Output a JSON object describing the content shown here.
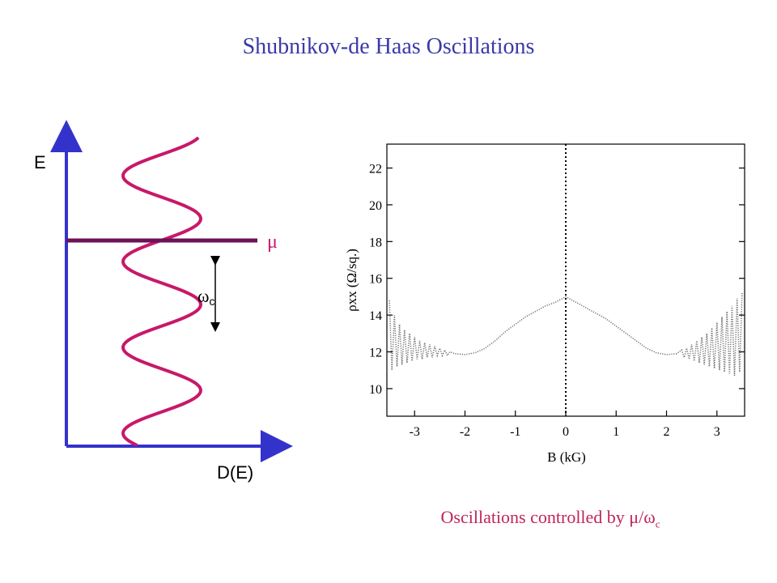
{
  "title": "Shubnikov-de Haas Oscillations",
  "caption": {
    "text": "Oscillations controlled by μ/ω",
    "subscript": "c"
  },
  "diagram": {
    "e_label": "E",
    "d_label": "D(E)",
    "mu_label": "μ",
    "omega_label": "ω",
    "omega_sub": "c",
    "colors": {
      "axis": "#3333cc",
      "curve": "#c8186a",
      "mu_line": "#6b1258"
    }
  },
  "chart_data": {
    "type": "line",
    "title": "",
    "xlabel": "B (kG)",
    "ylabel": "ρxx (Ω/sq.)",
    "xlim": [
      -3.55,
      3.55
    ],
    "ylim": [
      8.5,
      23.3
    ],
    "xticks": [
      -3,
      -2,
      -1,
      0,
      1,
      2,
      3
    ],
    "yticks": [
      10,
      12,
      14,
      16,
      18,
      20,
      22
    ],
    "vertical_line_at": 0,
    "series": [
      {
        "style": "dotted",
        "color": "#777777",
        "points": [
          [
            -3.5,
            14.8
          ],
          [
            -3.45,
            11.0
          ],
          [
            -3.4,
            14.0
          ],
          [
            -3.35,
            11.2
          ],
          [
            -3.3,
            13.5
          ],
          [
            -3.25,
            11.3
          ],
          [
            -3.2,
            13.2
          ],
          [
            -3.15,
            11.4
          ],
          [
            -3.1,
            13.0
          ],
          [
            -3.05,
            11.5
          ],
          [
            -3.0,
            12.8
          ],
          [
            -2.95,
            11.6
          ],
          [
            -2.9,
            12.6
          ],
          [
            -2.85,
            11.6
          ],
          [
            -2.8,
            12.5
          ],
          [
            -2.75,
            11.7
          ],
          [
            -2.7,
            12.4
          ],
          [
            -2.65,
            11.7
          ],
          [
            -2.6,
            12.3
          ],
          [
            -2.55,
            11.8
          ],
          [
            -2.5,
            12.2
          ],
          [
            -2.45,
            11.8
          ],
          [
            -2.4,
            12.1
          ],
          [
            -2.35,
            11.8
          ],
          [
            -2.3,
            12.0
          ],
          [
            -2.2,
            11.9
          ],
          [
            -2.0,
            11.85
          ],
          [
            -1.8,
            11.95
          ],
          [
            -1.6,
            12.2
          ],
          [
            -1.4,
            12.6
          ],
          [
            -1.2,
            13.1
          ],
          [
            -1.0,
            13.5
          ],
          [
            -0.8,
            13.9
          ],
          [
            -0.6,
            14.2
          ],
          [
            -0.4,
            14.5
          ],
          [
            -0.2,
            14.7
          ],
          [
            0.0,
            15.0
          ],
          [
            0.2,
            14.7
          ],
          [
            0.4,
            14.4
          ],
          [
            0.6,
            14.1
          ],
          [
            0.8,
            13.8
          ],
          [
            1.0,
            13.4
          ],
          [
            1.2,
            13.0
          ],
          [
            1.4,
            12.6
          ],
          [
            1.6,
            12.2
          ],
          [
            1.8,
            11.95
          ],
          [
            2.0,
            11.85
          ],
          [
            2.2,
            11.9
          ],
          [
            2.3,
            12.1
          ],
          [
            2.35,
            11.7
          ],
          [
            2.4,
            12.2
          ],
          [
            2.45,
            11.6
          ],
          [
            2.5,
            12.4
          ],
          [
            2.55,
            11.5
          ],
          [
            2.6,
            12.6
          ],
          [
            2.65,
            11.4
          ],
          [
            2.7,
            12.8
          ],
          [
            2.75,
            11.3
          ],
          [
            2.8,
            13.0
          ],
          [
            2.85,
            11.2
          ],
          [
            2.9,
            13.3
          ],
          [
            2.95,
            11.1
          ],
          [
            3.0,
            13.6
          ],
          [
            3.05,
            11.0
          ],
          [
            3.1,
            13.9
          ],
          [
            3.15,
            10.9
          ],
          [
            3.2,
            14.2
          ],
          [
            3.25,
            10.8
          ],
          [
            3.3,
            14.5
          ],
          [
            3.35,
            10.7
          ],
          [
            3.4,
            14.9
          ],
          [
            3.45,
            10.9
          ],
          [
            3.5,
            15.2
          ]
        ]
      }
    ]
  }
}
